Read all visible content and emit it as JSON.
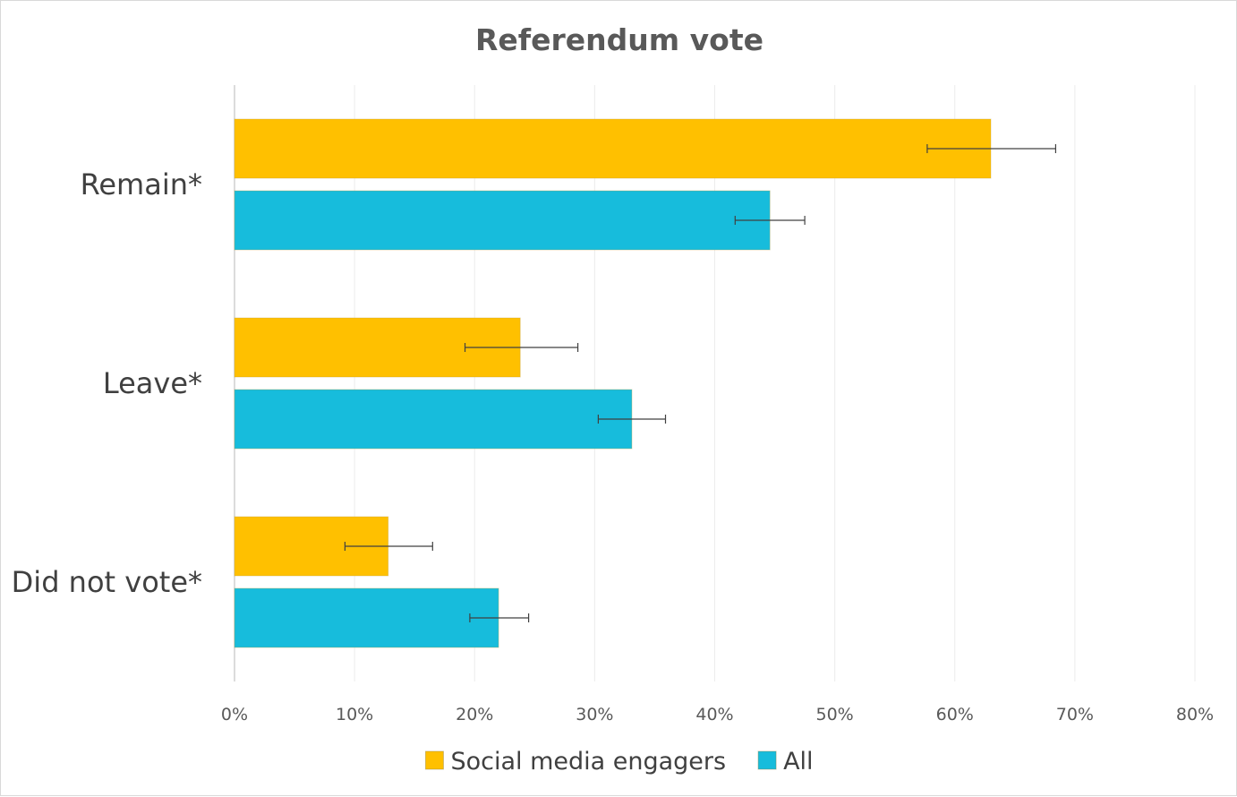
{
  "chart_data": {
    "type": "bar",
    "orientation": "horizontal",
    "title": "Referendum vote",
    "categories": [
      "Remain*",
      "Leave*",
      "Did not vote*"
    ],
    "series": [
      {
        "name": "Social media engagers",
        "color": "#FFC000",
        "values": [
          63.0,
          23.8,
          12.8
        ],
        "error_low": [
          5.3,
          4.6,
          3.6
        ],
        "error_high": [
          5.4,
          4.8,
          3.7
        ]
      },
      {
        "name": "All",
        "color": "#17BCDC",
        "values": [
          44.6,
          33.1,
          22.0
        ],
        "error_low": [
          2.9,
          2.8,
          2.4
        ],
        "error_high": [
          2.9,
          2.8,
          2.5
        ]
      }
    ],
    "xlim": [
      0,
      80
    ],
    "xticks": [
      "0%",
      "10%",
      "20%",
      "30%",
      "40%",
      "50%",
      "60%",
      "70%",
      "80%"
    ],
    "grid": true,
    "legend": "bottom"
  }
}
